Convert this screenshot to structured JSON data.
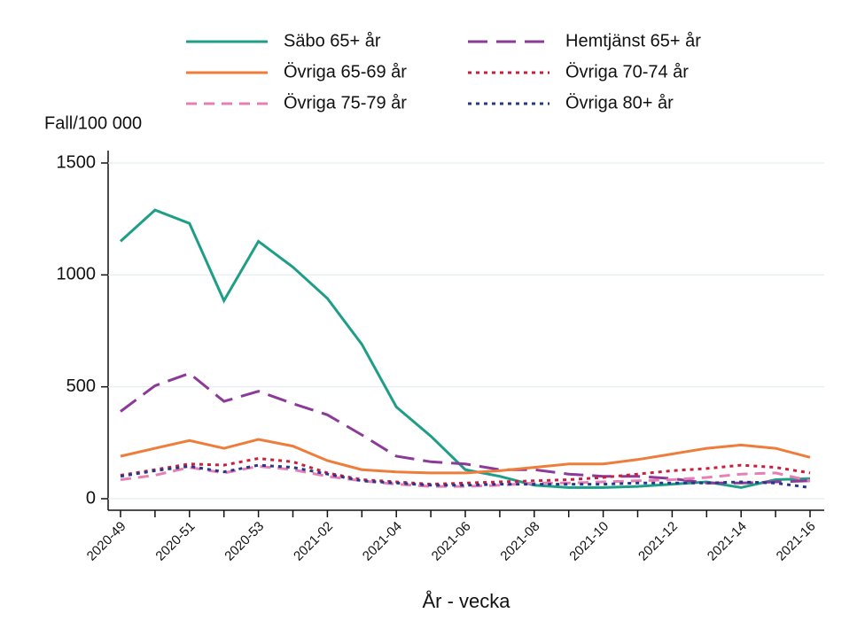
{
  "chart_data": {
    "type": "line",
    "y_label": "Fall/100 000",
    "x_label": "År - vecka",
    "categories": [
      "2020-49",
      null,
      "2020-51",
      null,
      "2020-53",
      null,
      "2021-02",
      null,
      "2021-04",
      null,
      "2021-06",
      null,
      "2021-08",
      null,
      "2021-10",
      null,
      "2021-12",
      null,
      "2021-14",
      null,
      "2021-16"
    ],
    "ylim": [
      0,
      1500
    ],
    "yticks": [
      0,
      500,
      1000,
      1500
    ],
    "grid": true,
    "series": [
      {
        "name": "Säbo 65+ år",
        "color": "#1f9e87",
        "style": "solid",
        "values": [
          1150,
          1290,
          1230,
          885,
          1150,
          1035,
          895,
          690,
          410,
          280,
          130,
          100,
          60,
          50,
          50,
          55,
          65,
          75,
          50,
          85,
          90
        ]
      },
      {
        "name": "Hemtjänst 65+ år",
        "color": "#8b3a98",
        "style": "longdash",
        "values": [
          390,
          505,
          560,
          435,
          480,
          425,
          375,
          285,
          190,
          165,
          155,
          130,
          130,
          110,
          100,
          100,
          90,
          70,
          70,
          75,
          80
        ]
      },
      {
        "name": "Övriga 65-69 år",
        "color": "#ee7d3b",
        "style": "solid",
        "values": [
          190,
          225,
          260,
          225,
          265,
          235,
          170,
          130,
          120,
          115,
          115,
          125,
          140,
          155,
          155,
          175,
          200,
          225,
          240,
          225,
          185
        ]
      },
      {
        "name": "Övriga 70-74 år",
        "color": "#c81f3c",
        "style": "dot",
        "values": [
          105,
          130,
          155,
          150,
          180,
          165,
          115,
          85,
          75,
          65,
          70,
          75,
          80,
          85,
          95,
          110,
          125,
          135,
          150,
          140,
          115
        ]
      },
      {
        "name": "Övriga 75-79 år",
        "color": "#e67fb5",
        "style": "dash",
        "values": [
          85,
          105,
          140,
          115,
          145,
          130,
          100,
          80,
          65,
          55,
          55,
          60,
          70,
          70,
          75,
          80,
          85,
          95,
          110,
          115,
          80
        ]
      },
      {
        "name": "Övriga 80+ år",
        "color": "#27378a",
        "style": "dot",
        "values": [
          100,
          125,
          145,
          120,
          150,
          140,
          110,
          80,
          70,
          60,
          60,
          65,
          65,
          65,
          65,
          70,
          70,
          70,
          75,
          70,
          50
        ]
      }
    ]
  }
}
